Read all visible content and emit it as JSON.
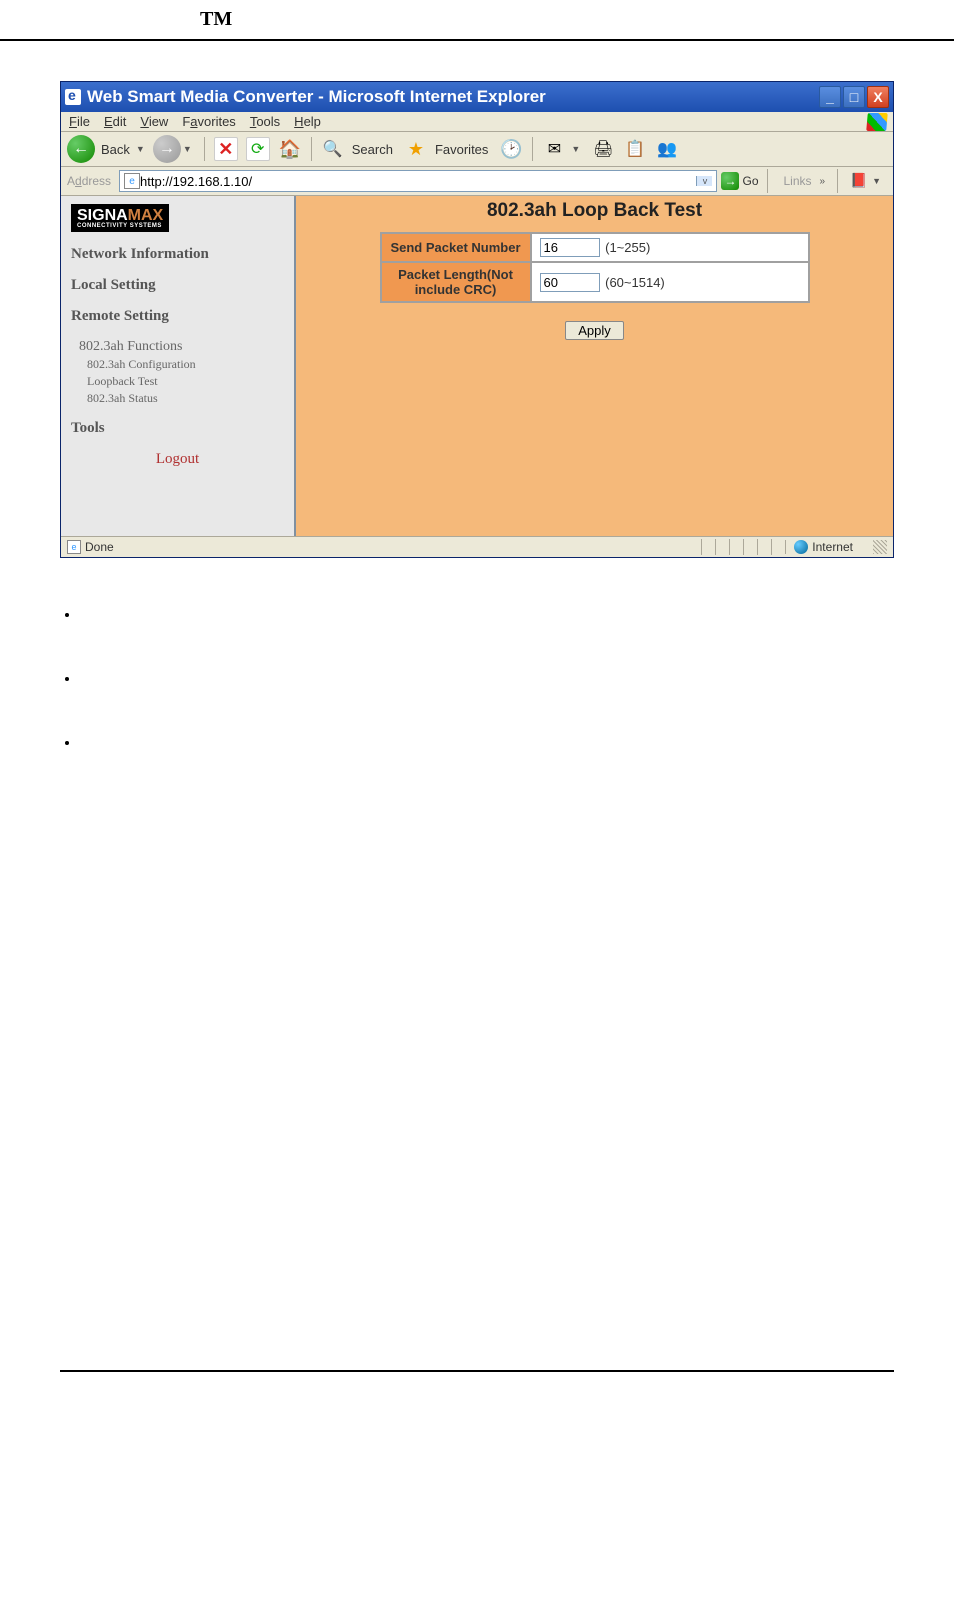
{
  "header": {
    "trademark": "TM"
  },
  "window": {
    "title": "Web Smart Media Converter - Microsoft Internet Explorer",
    "menubar": [
      "File",
      "Edit",
      "View",
      "Favorites",
      "Tools",
      "Help"
    ],
    "toolbar": {
      "back_label": "Back",
      "search_label": "Search",
      "favorites_label": "Favorites"
    },
    "addressbar": {
      "label": "Address",
      "url": "http://192.168.1.10/",
      "go_label": "Go",
      "links_label": "Links"
    },
    "statusbar": {
      "status_text": "Done",
      "zone_text": "Internet"
    }
  },
  "sidebar": {
    "logo_main": "SIGNA",
    "logo_accent": "MAX",
    "logo_sub": "CONNECTIVITY SYSTEMS",
    "nav": {
      "network_info": "Network Information",
      "local_setting": "Local Setting",
      "remote_setting": "Remote Setting",
      "functions": {
        "title": "802.3ah Functions",
        "items": [
          "802.3ah Configuration",
          "Loopback Test",
          "802.3ah Status"
        ]
      },
      "tools": "Tools",
      "logout": "Logout"
    }
  },
  "main": {
    "heading": "802.3ah Loop Back Test",
    "fields": [
      {
        "label": "Send Packet Number",
        "value": "16",
        "range": "(1~255)"
      },
      {
        "label": "Packet Length(Not include CRC)",
        "value": "60",
        "range": "(60~1514)"
      }
    ],
    "apply_label": "Apply"
  },
  "colors": {
    "titlebar": "#2a5db8",
    "toolbar_bg": "#ece9d8",
    "sidebar_bg": "#e8e8e8",
    "main_bg": "#f5b97a",
    "label_cell_bg": "#f09850",
    "logout_color": "#b03030"
  }
}
